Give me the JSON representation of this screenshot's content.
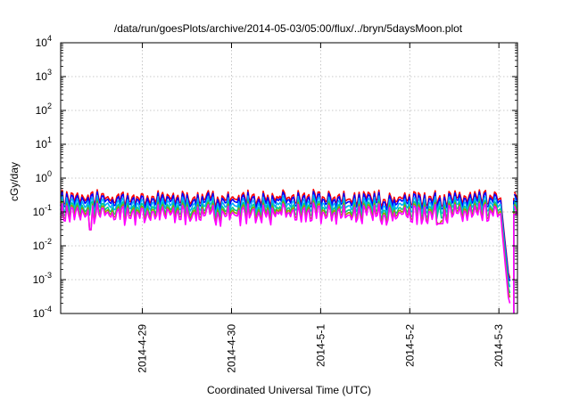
{
  "chart_data": {
    "type": "line",
    "title": "/data/run/goesPlots/archive/2014-05-03/05:00/flux/../bryn/5daysMoon.plot",
    "xlabel": "Coordinated Universal Time (UTC)",
    "ylabel": "cGy/day",
    "y_scale": "log",
    "ylim": [
      0.0001,
      10000
    ],
    "xlim": [
      "2014-04-28T02:00",
      "2014-05-03T05:00"
    ],
    "grid": true,
    "y_ticks": [
      {
        "value": 0.0001,
        "base": "10",
        "exp": "-4"
      },
      {
        "value": 0.001,
        "base": "10",
        "exp": "-3"
      },
      {
        "value": 0.01,
        "base": "10",
        "exp": "-2"
      },
      {
        "value": 0.1,
        "base": "10",
        "exp": "-1"
      },
      {
        "value": 1,
        "base": "10",
        "exp": "0"
      },
      {
        "value": 10,
        "base": "10",
        "exp": "1"
      },
      {
        "value": 100,
        "base": "10",
        "exp": "2"
      },
      {
        "value": 1000,
        "base": "10",
        "exp": "3"
      },
      {
        "value": 10000,
        "base": "10",
        "exp": "4"
      }
    ],
    "x_ticks": [
      {
        "value": "2014-04-29T00:00",
        "label": "2014-4-29"
      },
      {
        "value": "2014-04-30T00:00",
        "label": "2014-4-30"
      },
      {
        "value": "2014-05-01T00:00",
        "label": "2014-5-1"
      },
      {
        "value": "2014-05-02T00:00",
        "label": "2014-5-2"
      },
      {
        "value": "2014-05-03T00:00",
        "label": "2014-5-3"
      }
    ],
    "series": [
      {
        "color": "#ff0000",
        "level": 0.25,
        "drop_to": 0.0011
      },
      {
        "color": "#0000ff",
        "level": 0.21,
        "drop_to": 0.0009
      },
      {
        "color": "#00aaff",
        "level": 0.16,
        "drop_to": 0.0006
      },
      {
        "color": "#00cc88",
        "level": 0.12,
        "drop_to": 0.0004
      },
      {
        "color": "#999900",
        "level": 0.1,
        "drop_to": 0.0003
      },
      {
        "color": "#ff00ff",
        "level": 0.085,
        "drop_to": 0.0002
      }
    ],
    "dips": [
      {
        "x": "2014-04-28T10:00",
        "value": 0.03
      },
      {
        "x": "2014-05-01T03:00",
        "value": 0.055
      },
      {
        "x": "2014-05-02T08:00",
        "value": 0.045
      }
    ],
    "data_gap": [
      "2014-05-03T00:30",
      "2014-05-03T04:00"
    ]
  }
}
